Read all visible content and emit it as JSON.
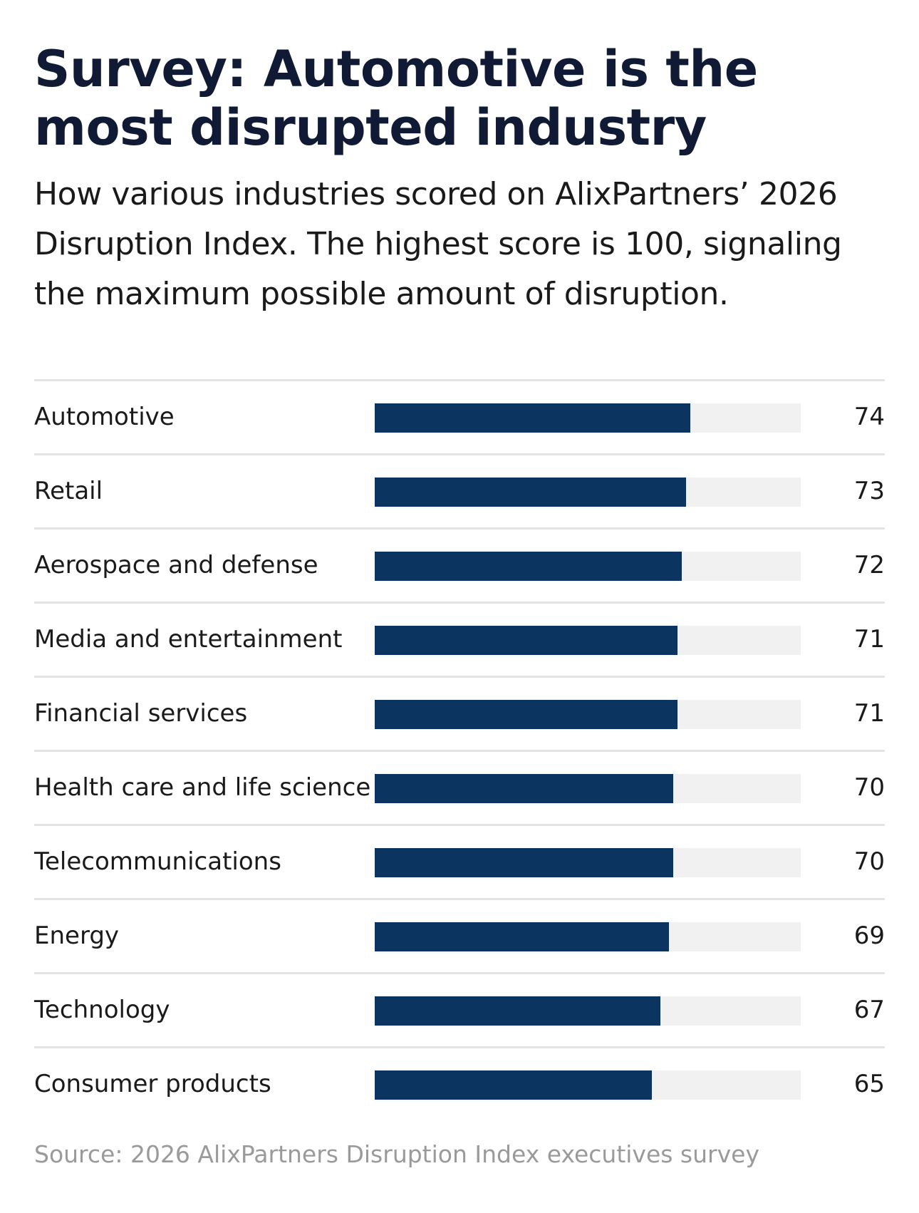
{
  "chart_data": {
    "type": "bar",
    "orientation": "horizontal",
    "title": "Survey: Automotive is the most disrupted industry",
    "subtitle": "How various industries scored on AlixPartners’ 2026 Disruption Index. The highest score is 100, signaling the maximum possible amount of disruption.",
    "categories": [
      "Automotive",
      "Retail",
      "Aerospace and defense",
      "Media and entertainment",
      "Financial services",
      "Health care and life science",
      "Telecommunications",
      "Energy",
      "Technology",
      "Consumer products"
    ],
    "values": [
      74,
      73,
      72,
      71,
      71,
      70,
      70,
      69,
      67,
      65
    ],
    "xlim": [
      0,
      100
    ],
    "xlabel": "",
    "ylabel": "",
    "grid": false,
    "legend": "none",
    "bar_color": "#0b3461",
    "track_color": "#f1f1f1",
    "source": "Source: 2026 AlixPartners Disruption Index executives survey"
  }
}
